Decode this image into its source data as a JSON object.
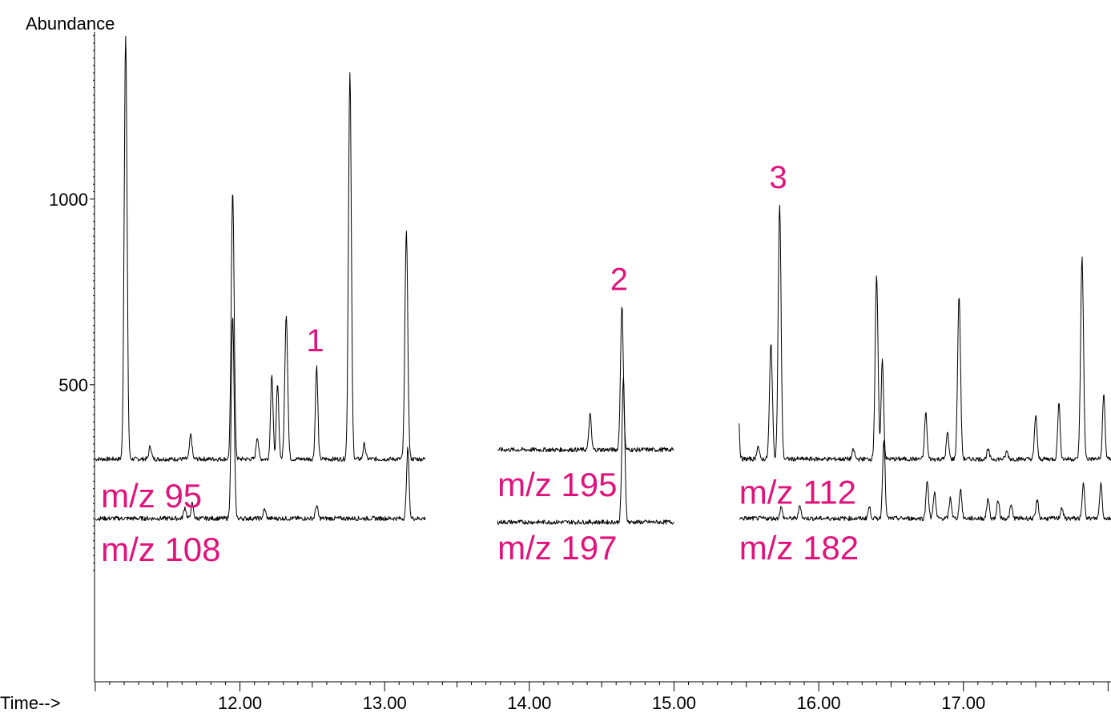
{
  "chart_data": {
    "type": "line",
    "ylabel": "Abundance",
    "xlabel": "Time-->",
    "x_ticks": [
      12.0,
      13.0,
      14.0,
      15.0,
      16.0,
      17.0
    ],
    "x_tick_labels": [
      "12.00",
      "13.00",
      "14.00",
      "15.00",
      "16.00",
      "17.00"
    ],
    "y_ticks": [
      500,
      1000
    ],
    "y_tick_labels": [
      "500",
      "1000"
    ],
    "xlim": [
      10.995,
      18.02
    ],
    "ylim": [
      -300,
      1450
    ],
    "series": [
      {
        "name": "m/z 95",
        "x_range": [
          11.0,
          13.28
        ],
        "baseline": 300,
        "peaks": [
          [
            11.21,
            1440
          ],
          [
            11.38,
            335
          ],
          [
            11.66,
            365
          ],
          [
            11.95,
            1025
          ],
          [
            12.12,
            360
          ],
          [
            12.22,
            530
          ],
          [
            12.26,
            500
          ],
          [
            12.32,
            690
          ],
          [
            12.53,
            550
          ],
          [
            12.76,
            1340
          ],
          [
            12.86,
            340
          ],
          [
            13.15,
            915
          ]
        ]
      },
      {
        "name": "m/z 108",
        "x_range": [
          11.0,
          13.28
        ],
        "baseline": 140,
        "peaks": [
          [
            11.62,
            170
          ],
          [
            11.67,
            180
          ],
          [
            11.95,
            685
          ],
          [
            12.17,
            165
          ],
          [
            12.53,
            175
          ],
          [
            13.16,
            330
          ]
        ]
      },
      {
        "name": "m/z 195",
        "x_range": [
          13.78,
          15.0
        ],
        "baseline": 325,
        "peaks": [
          [
            14.42,
            420
          ],
          [
            14.64,
            710
          ]
        ]
      },
      {
        "name": "m/z 197",
        "x_range": [
          13.78,
          15.0
        ],
        "baseline": 130,
        "peaks": [
          [
            14.65,
            515
          ]
        ]
      },
      {
        "name": "m/z 112",
        "x_range": [
          15.45,
          18.02
        ],
        "baseline": 300,
        "peaks": [
          [
            15.44,
            500
          ],
          [
            15.58,
            335
          ],
          [
            15.67,
            610
          ],
          [
            15.73,
            985
          ],
          [
            16.24,
            325
          ],
          [
            16.4,
            790
          ],
          [
            16.44,
            570
          ],
          [
            16.74,
            425
          ],
          [
            16.89,
            370
          ],
          [
            16.97,
            740
          ],
          [
            17.17,
            325
          ],
          [
            17.3,
            320
          ],
          [
            17.5,
            420
          ],
          [
            17.66,
            450
          ],
          [
            17.82,
            845
          ],
          [
            17.97,
            475
          ]
        ]
      },
      {
        "name": "m/z 182",
        "x_range": [
          15.45,
          18.02
        ],
        "baseline": 140,
        "peaks": [
          [
            15.74,
            170
          ],
          [
            15.87,
            175
          ],
          [
            16.35,
            170
          ],
          [
            16.45,
            355
          ],
          [
            16.75,
            245
          ],
          [
            16.8,
            210
          ],
          [
            16.91,
            195
          ],
          [
            16.98,
            220
          ],
          [
            17.17,
            195
          ],
          [
            17.24,
            190
          ],
          [
            17.33,
            175
          ],
          [
            17.51,
            190
          ],
          [
            17.68,
            170
          ],
          [
            17.83,
            235
          ],
          [
            17.95,
            235
          ]
        ]
      }
    ],
    "annotations": [
      {
        "text": "1",
        "x": 12.52,
        "y": 590
      },
      {
        "text": "2",
        "x": 14.62,
        "y": 755
      },
      {
        "text": "3",
        "x": 15.72,
        "y": 1030
      },
      {
        "text": "m/z 95",
        "x": 11.04,
        "y": 170
      },
      {
        "text": "m/z 108",
        "x": 11.04,
        "y": 25
      },
      {
        "text": "m/z 195",
        "x": 13.78,
        "y": 200
      },
      {
        "text": "m/z 197",
        "x": 13.78,
        "y": 30
      },
      {
        "text": "m/z 112",
        "x": 15.45,
        "y": 180
      },
      {
        "text": "m/z 182",
        "x": 15.45,
        "y": 30
      }
    ],
    "colors": {
      "trace": "#000000",
      "annotation": "#e0137d"
    },
    "grid": false,
    "legend": "none"
  }
}
